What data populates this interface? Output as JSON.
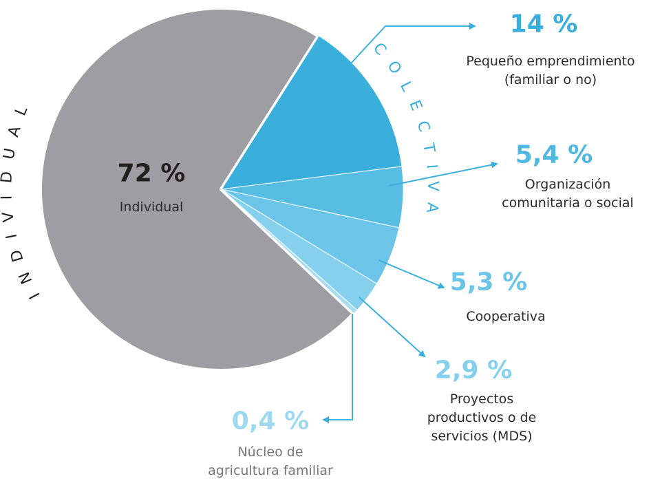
{
  "chart_data": {
    "type": "pie",
    "categories": [
      "Individual",
      "Pequeño emprendimiento (familiar o no)",
      "Organización comunitaria o social",
      "Cooperativa",
      "Proyectos productivos o de servicios (MDS)",
      "Núcleo de agricultura familiar"
    ],
    "values": [
      72,
      14,
      5.4,
      5.3,
      2.9,
      0.4
    ],
    "value_labels": [
      "72 %",
      "14 %",
      "5,4 %",
      "5,3 %",
      "2,9 %",
      "0,4 %"
    ],
    "colors": [
      "#9d9da2",
      "#3aafdc",
      "#57bde3",
      "#6cc5e8",
      "#86d0ee",
      "#a7dcf2"
    ],
    "group_labels": [
      "INDIVIDUAL",
      "COLECTIVA"
    ]
  }
}
